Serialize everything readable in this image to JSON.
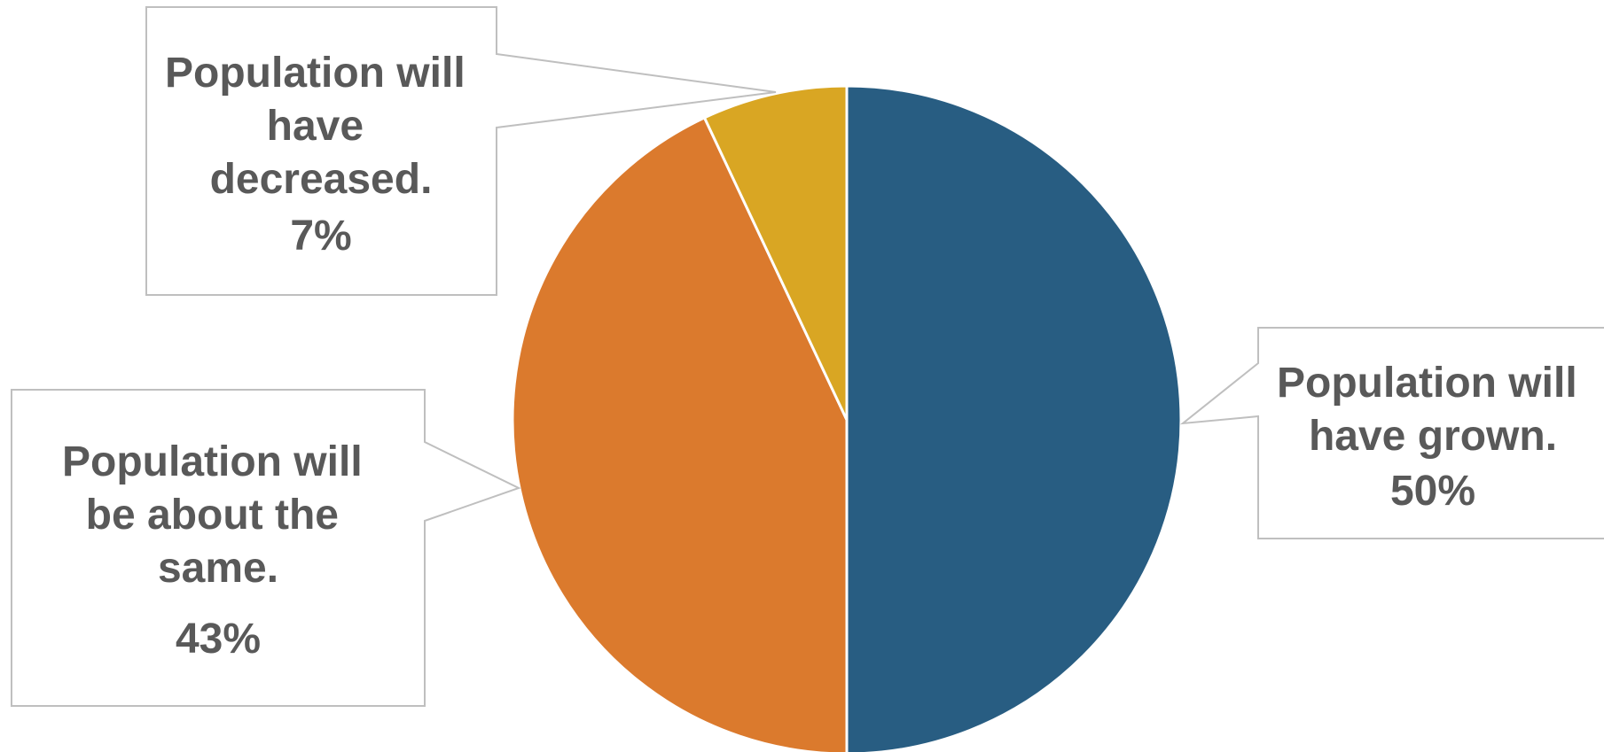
{
  "chart_data": {
    "type": "pie",
    "slices": [
      {
        "label": "Population will have grown.",
        "value": 50,
        "value_label": "50%",
        "color": "#285D82"
      },
      {
        "label": "Population will be about the same.",
        "value": 43,
        "value_label": "43%",
        "color": "#DB7A2D"
      },
      {
        "label": "Population will have decreased.",
        "value": 7,
        "value_label": "7%",
        "color": "#D9A623"
      }
    ],
    "label_color": "#595959",
    "slice_border_color": "#FFFFFF",
    "callout_border_color": "#BFBFBF"
  }
}
